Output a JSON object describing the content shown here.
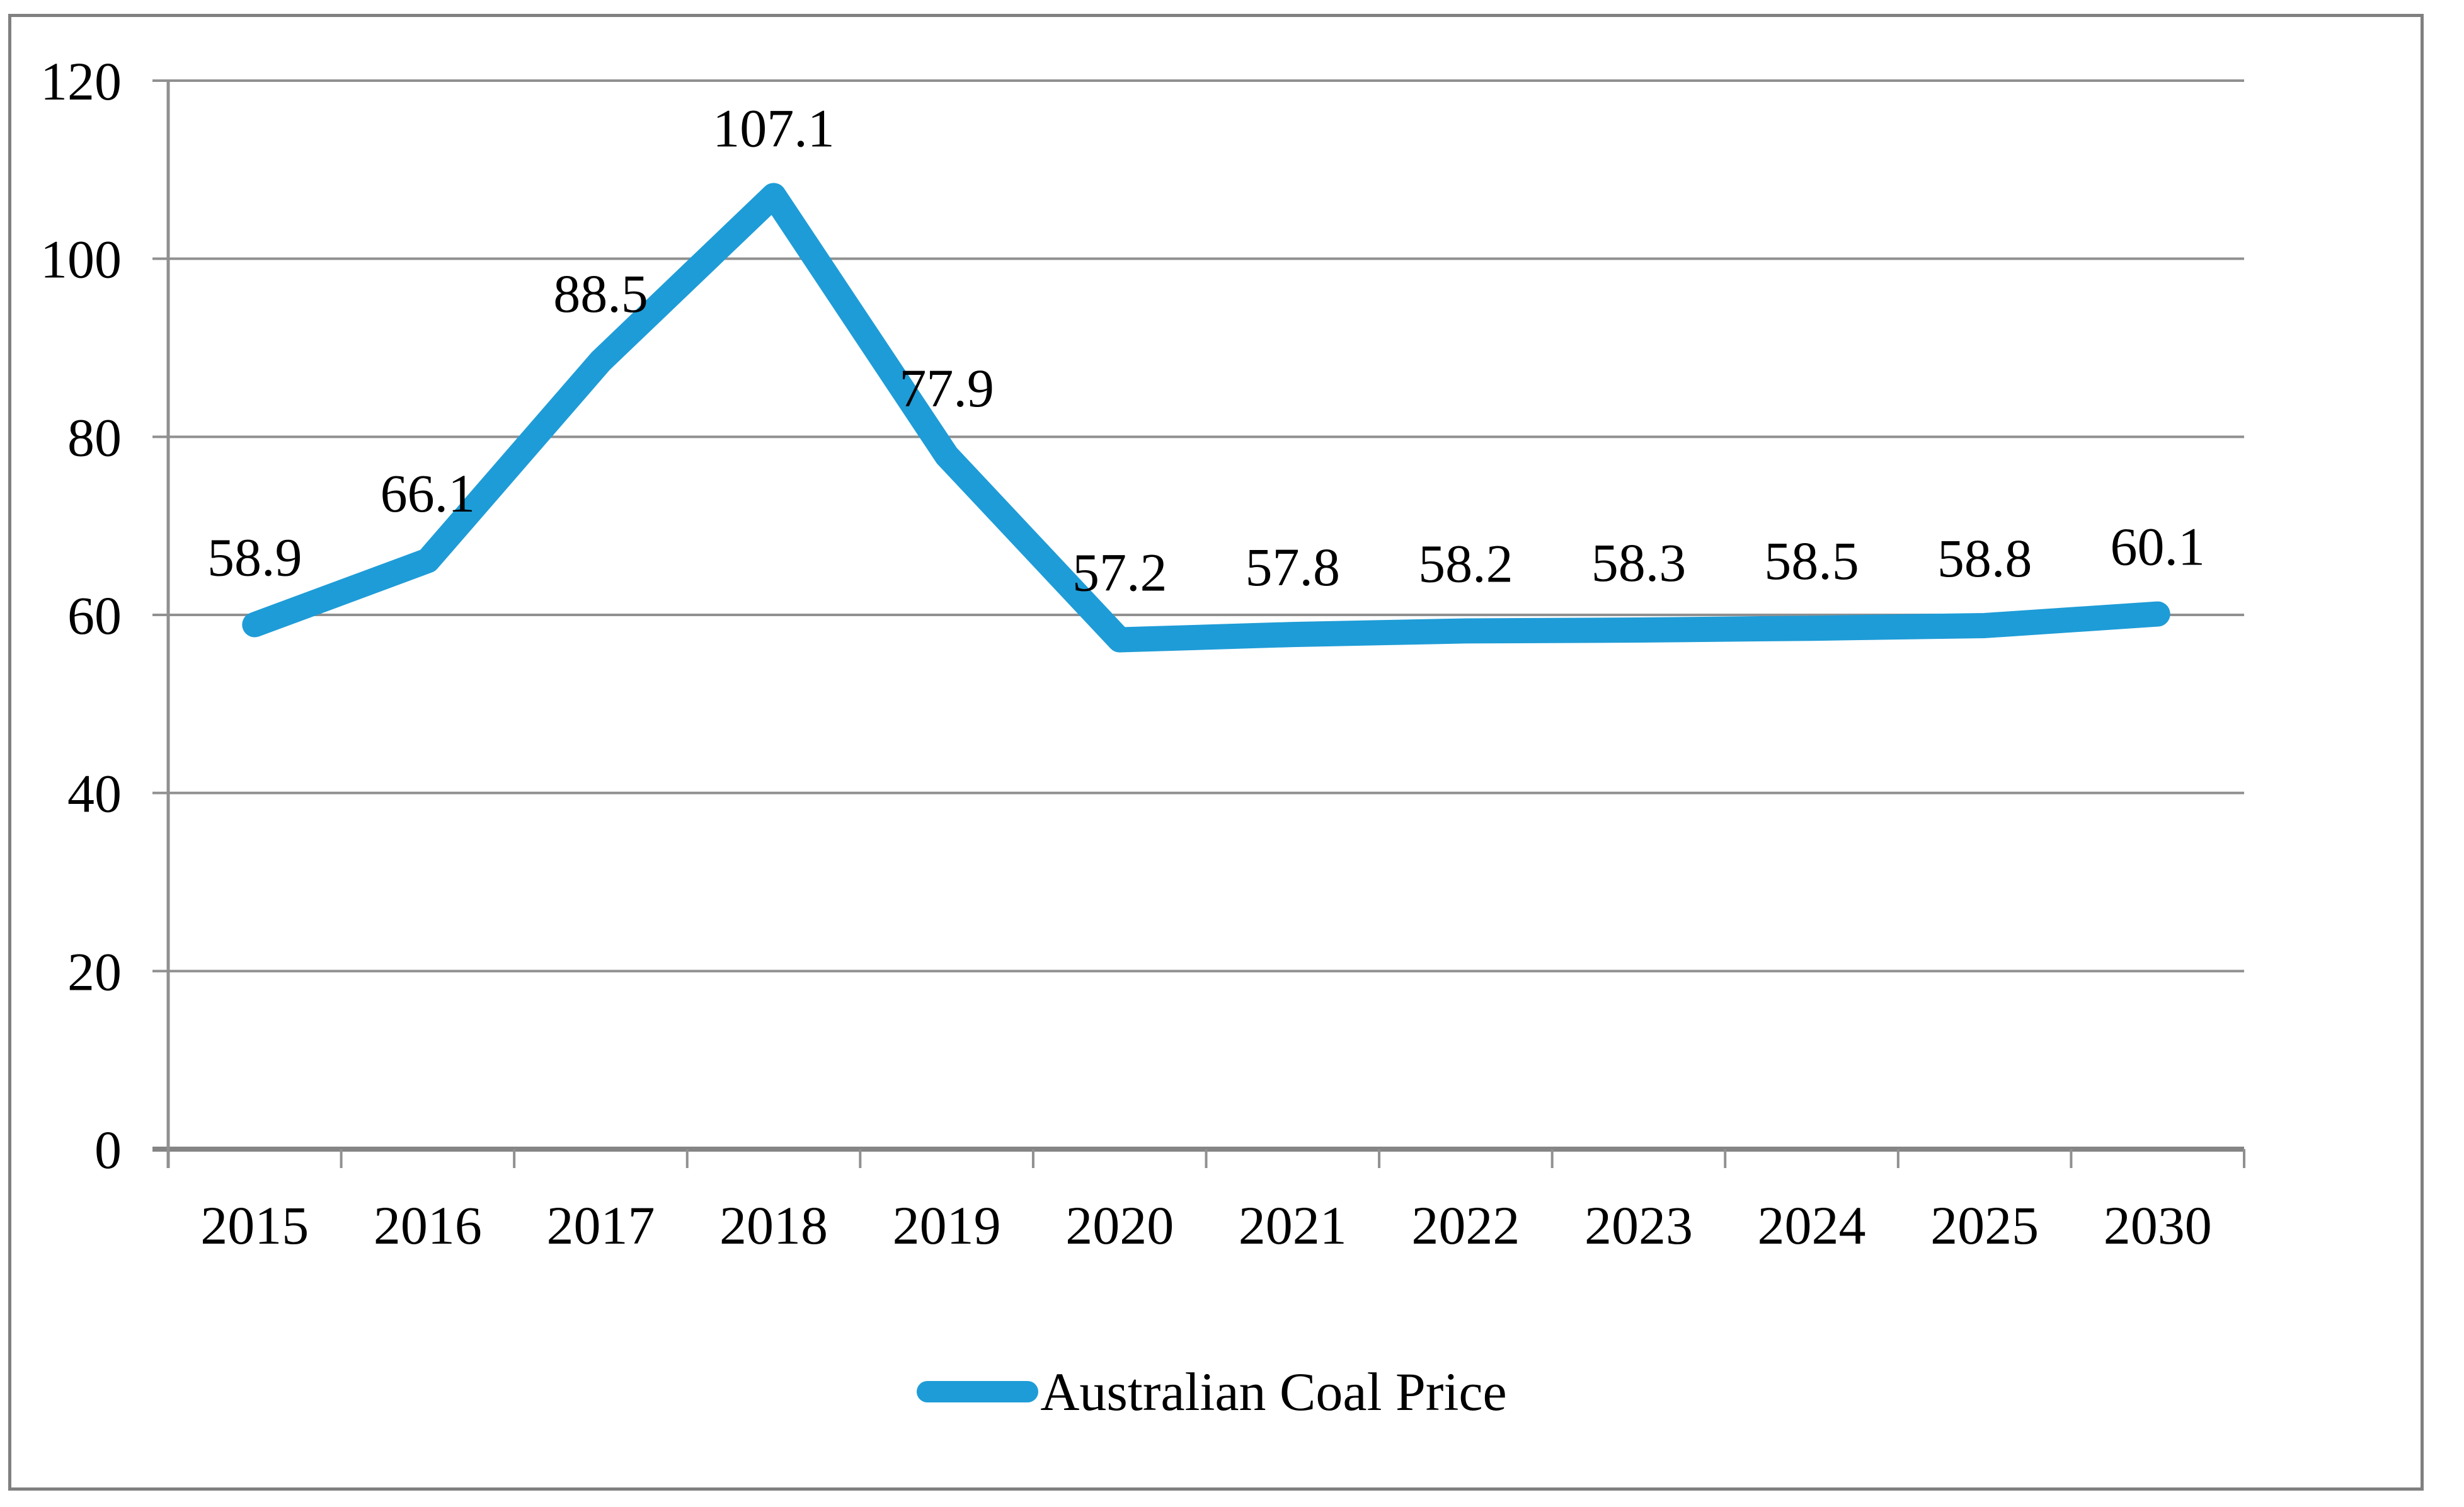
{
  "chart_data": {
    "type": "line",
    "categories": [
      "2015",
      "2016",
      "2017",
      "2018",
      "2019",
      "2020",
      "2021",
      "2022",
      "2023",
      "2024",
      "2025",
      "2030"
    ],
    "series": [
      {
        "name": "Australian Coal Price",
        "values": [
          58.9,
          66.1,
          88.5,
          107.1,
          77.9,
          57.2,
          57.8,
          58.2,
          58.3,
          58.5,
          58.8,
          60.1
        ],
        "data_labels": [
          "58.9",
          "66.1",
          "88.5",
          "107.1",
          "77.9",
          "57.2",
          "57.8",
          "58.2",
          "58.3",
          "58.5",
          "58.8",
          "60.1"
        ]
      }
    ],
    "ylim": [
      0,
      120
    ],
    "yticks": [
      0,
      20,
      40,
      60,
      80,
      100,
      120
    ],
    "ytick_labels": [
      "0",
      "20",
      "40",
      "60",
      "80",
      "100",
      "120"
    ],
    "grid": true,
    "legend_position": "bottom",
    "colors": {
      "line": "#1E9CD7",
      "gridline": "#909090",
      "axis": "#858585",
      "frame": "#808080",
      "text": "#000000"
    }
  },
  "legend": {
    "label": "Australian Coal Price"
  }
}
